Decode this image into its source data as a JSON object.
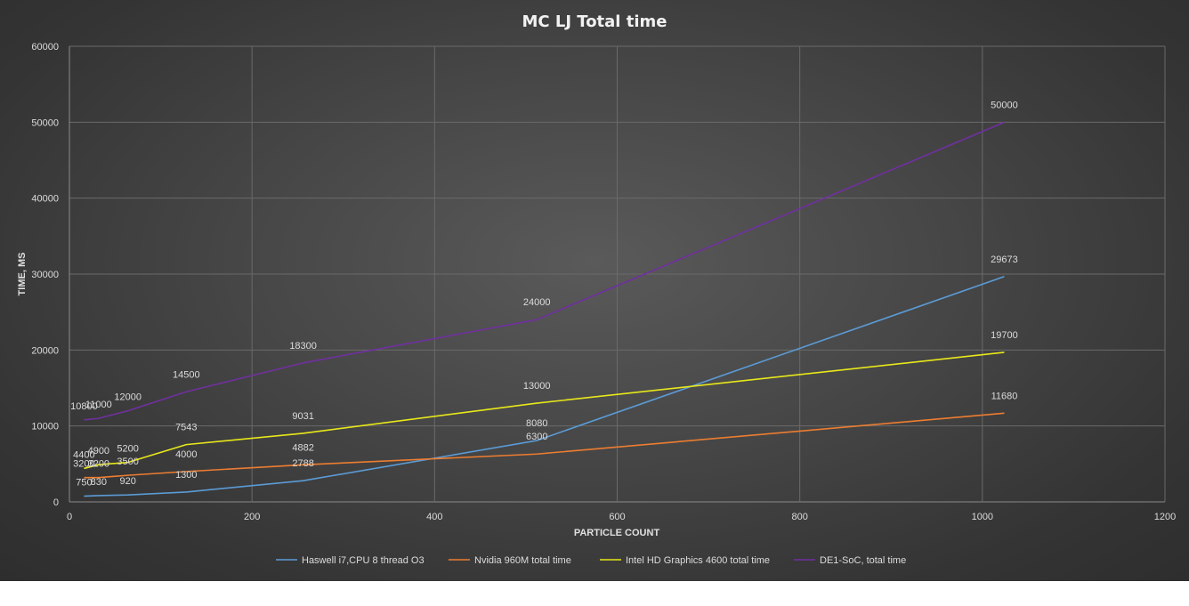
{
  "chart_data": {
    "type": "line",
    "title": "MC LJ Total  time",
    "xlabel": "PARTICLE COUNT",
    "ylabel": "TIME, MS",
    "xlim": [
      0,
      1200
    ],
    "ylim": [
      0,
      60000
    ],
    "x_ticks": [
      "0",
      "200",
      "400",
      "600",
      "800",
      "1000",
      "1200"
    ],
    "y_ticks": [
      "0",
      "10000",
      "20000",
      "30000",
      "40000",
      "50000",
      "60000"
    ],
    "grid": true,
    "legend_position": "bottom",
    "x": [
      16,
      32,
      64,
      128,
      256,
      512,
      1024
    ],
    "series": [
      {
        "name": "Haswell i7,CPU 8 thread O3",
        "color": "#5b9bd5",
        "values": [
          750,
          830,
          920,
          1300,
          2788,
          8080,
          29673
        ],
        "labels": [
          "750",
          "830",
          "920",
          "1300",
          "2788",
          "8080",
          "29673"
        ]
      },
      {
        "name": "Nvidia 960M total time",
        "color": "#ed7d31",
        "values": [
          3200,
          3200,
          3500,
          4000,
          4882,
          6300,
          11680
        ],
        "labels": [
          "3200",
          "3200",
          "3500",
          "4000",
          "4882",
          "6300",
          "11680"
        ]
      },
      {
        "name": "Intel HD Graphics 4600 total time",
        "color": "#e8e81a",
        "values": [
          4400,
          4900,
          5200,
          7543,
          9031,
          13000,
          19700
        ],
        "labels": [
          "4400",
          "4900",
          "5200",
          "7543",
          "9031",
          "13000",
          "19700"
        ]
      },
      {
        "name": "DE1-SoC, total time",
        "color": "#7030a0",
        "values": [
          10800,
          11000,
          12000,
          14500,
          18300,
          24000,
          50000
        ],
        "labels": [
          "10800",
          "11000",
          "12000",
          "14500",
          "18300",
          "24000",
          "50000"
        ]
      }
    ]
  }
}
